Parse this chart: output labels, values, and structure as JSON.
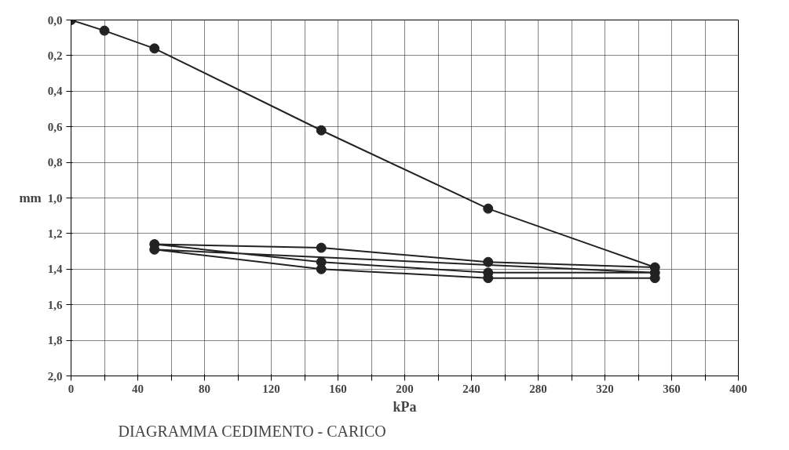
{
  "chart_data": {
    "type": "line",
    "title": "DIAGRAMMA  CEDIMENTO - CARICO",
    "xlabel": "kPa",
    "ylabel": "mm",
    "series": [
      {
        "color": "#222222",
        "x": [
          0,
          20,
          50,
          150,
          250,
          350,
          250,
          150,
          50,
          150,
          250,
          350,
          50,
          150,
          250,
          350
        ],
        "values": [
          0.0,
          0.06,
          0.16,
          0.62,
          1.06,
          1.39,
          1.36,
          1.28,
          1.26,
          1.36,
          1.42,
          1.42,
          1.29,
          1.4,
          1.45,
          1.45
        ]
      }
    ],
    "marker": "circle",
    "line_style": "solid",
    "grid": true,
    "xlim": [
      0,
      400
    ],
    "ylim": [
      2.0,
      0.0
    ],
    "xticks": [
      0,
      {
        "value": 20,
        "label": null
      },
      40,
      {
        "value": 60,
        "label": null
      },
      80,
      {
        "value": 100,
        "label": null
      },
      120,
      {
        "value": 140,
        "label": null
      },
      160,
      {
        "value": 180,
        "label": null
      },
      200,
      {
        "value": 220,
        "label": null
      },
      240,
      {
        "value": 260,
        "label": null
      },
      280,
      {
        "value": 300,
        "label": null
      },
      320,
      {
        "value": 340,
        "label": null
      },
      360,
      {
        "value": 380,
        "label": null
      },
      400
    ],
    "yticks": [
      {
        "value": 0.0,
        "label": "0,0"
      },
      {
        "value": 0.2,
        "label": "0,2"
      },
      {
        "value": 0.4,
        "label": "0,4"
      },
      {
        "value": 0.6,
        "label": "0,6"
      },
      {
        "value": 0.8,
        "label": "0,8"
      },
      {
        "value": 1.0,
        "label": "1,0"
      },
      {
        "value": 1.2,
        "label": "1,2"
      },
      {
        "value": 1.4,
        "label": "1,4"
      },
      {
        "value": 1.6,
        "label": "1,6"
      },
      {
        "value": 1.8,
        "label": "1,8"
      },
      {
        "value": 2.0,
        "label": "2,0"
      }
    ]
  }
}
